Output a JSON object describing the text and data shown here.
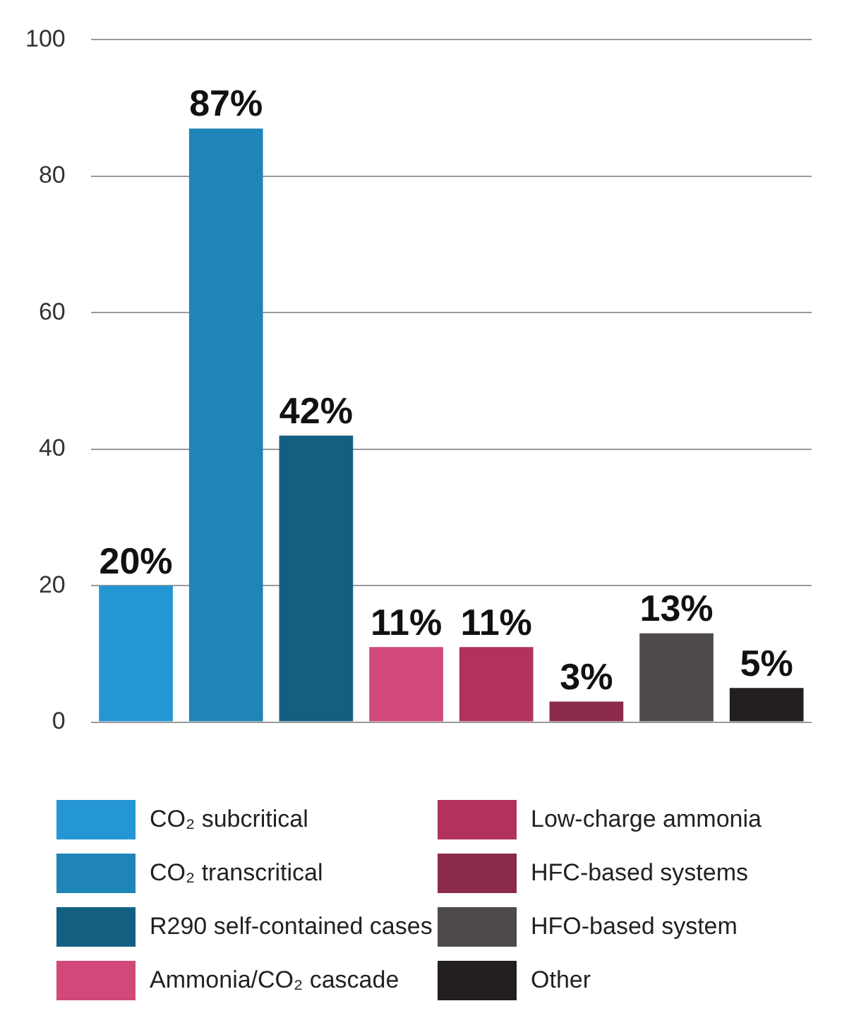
{
  "chart_data": {
    "type": "bar",
    "categories": [
      null,
      null,
      null,
      null,
      null,
      null,
      null,
      null
    ],
    "series": [
      {
        "name": "CO₂ subcritical",
        "color": "#2596d4",
        "values": [
          20,
          null,
          null,
          null,
          null,
          null,
          null,
          null
        ],
        "value_labels": [
          "20%",
          null,
          null,
          null,
          null,
          null,
          null,
          null
        ]
      },
      {
        "name": "CO₂ transcritical",
        "color": "#1f84b8",
        "values": [
          null,
          87,
          null,
          null,
          null,
          null,
          null,
          null
        ],
        "value_labels": [
          null,
          "87%",
          null,
          null,
          null,
          null,
          null,
          null
        ]
      },
      {
        "name": "R290 self-contained cases",
        "color": "#135f82",
        "values": [
          null,
          null,
          42,
          null,
          null,
          null,
          null,
          null
        ],
        "value_labels": [
          null,
          null,
          "42%",
          null,
          null,
          null,
          null,
          null
        ]
      },
      {
        "name": "Ammonia/CO₂ cascade",
        "color": "#d1487a",
        "values": [
          null,
          null,
          null,
          11,
          null,
          null,
          null,
          null
        ],
        "value_labels": [
          null,
          null,
          null,
          "11%",
          null,
          null,
          null,
          null
        ]
      },
      {
        "name": "Low-charge ammonia",
        "color": "#b1335d",
        "values": [
          null,
          null,
          null,
          null,
          11,
          null,
          null,
          null
        ],
        "value_labels": [
          null,
          null,
          null,
          null,
          "11%",
          null,
          null,
          null
        ]
      },
      {
        "name": "HFC-based systems",
        "color": "#8c2a4a",
        "values": [
          null,
          null,
          null,
          null,
          null,
          3,
          null,
          null
        ],
        "value_labels": [
          null,
          null,
          null,
          null,
          null,
          "3%",
          null,
          null
        ]
      },
      {
        "name": "HFO-based system",
        "color": "#4d494d",
        "values": [
          null,
          null,
          null,
          null,
          null,
          null,
          13,
          null
        ],
        "value_labels": [
          null,
          null,
          null,
          null,
          null,
          null,
          "13%",
          null
        ]
      },
      {
        "name": "Other",
        "color": "#231f20",
        "values": [
          null,
          null,
          null,
          null,
          null,
          null,
          null,
          5
        ],
        "value_labels": [
          null,
          null,
          null,
          null,
          null,
          null,
          null,
          "5%"
        ]
      }
    ],
    "ylim": [
      0,
      100
    ],
    "yticks": [
      0,
      20,
      40,
      60,
      80,
      100
    ],
    "grid": "y",
    "legend": "bottom",
    "tick_labels": "y"
  }
}
